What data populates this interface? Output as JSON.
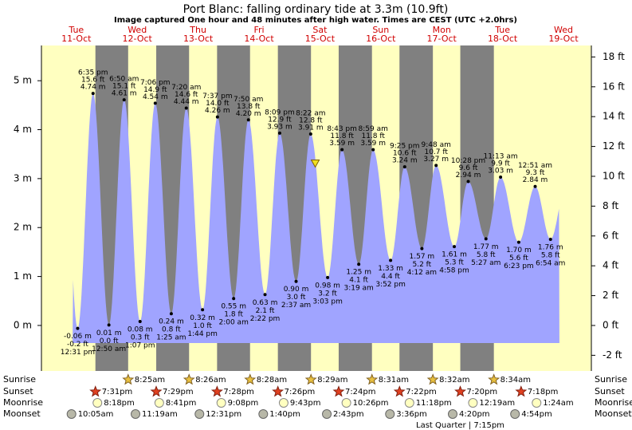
{
  "chart_data": {
    "type": "tide",
    "title": "Port Blanc: falling  ordinary tide at 3.3m (10.9ft)",
    "subtitle": "Image captured One hour and 48 minutes after high water. Times are CEST (UTC +2.0hrs)",
    "days": [
      {
        "name": "Tue",
        "date": "11-Oct"
      },
      {
        "name": "Wed",
        "date": "12-Oct"
      },
      {
        "name": "Thu",
        "date": "13-Oct"
      },
      {
        "name": "Fri",
        "date": "14-Oct"
      },
      {
        "name": "Sat",
        "date": "15-Oct"
      },
      {
        "name": "Sun",
        "date": "16-Oct"
      },
      {
        "name": "Mon",
        "date": "17-Oct"
      },
      {
        "name": "Tue",
        "date": "18-Oct"
      },
      {
        "name": "Wed",
        "date": "19-Oct"
      }
    ],
    "ylim": [
      -0.93,
      5.72
    ],
    "yticks": [
      {
        "value": 0,
        "label": "0 m"
      },
      {
        "value": 1,
        "label": "1 m"
      },
      {
        "value": 2,
        "label": "2 m"
      },
      {
        "value": 3,
        "label": "3 m"
      },
      {
        "value": 4,
        "label": "4 m"
      },
      {
        "value": 5,
        "label": "5 m"
      }
    ],
    "y2lim": [
      -3.05,
      18.77
    ],
    "y2ticks": [
      {
        "value": -2,
        "label": "-2 ft"
      },
      {
        "value": 0,
        "label": "0 ft"
      },
      {
        "value": 2,
        "label": "2 ft"
      },
      {
        "value": 4,
        "label": "4 ft"
      },
      {
        "value": 6,
        "label": "6 ft"
      },
      {
        "value": 8,
        "label": "8 ft"
      },
      {
        "value": 10,
        "label": "10 ft"
      },
      {
        "value": 12,
        "label": "12 ft"
      },
      {
        "value": 14,
        "label": "14 ft"
      },
      {
        "value": 16,
        "label": "16 ft"
      },
      {
        "value": 18,
        "label": "18 ft"
      }
    ],
    "color": "#a0a4ff",
    "day_color": "#ffffc0",
    "night_color": "#808080",
    "current_height": 3.3,
    "extremes": [
      {
        "time": "12:31 pm",
        "height": -0.06,
        "height_label": "-0.06 m",
        "feet_label": "-0.2 ft"
      },
      {
        "time": "6:35 pm",
        "height": 4.74,
        "height_label": "4.74 m",
        "feet_label": "15.6 ft"
      },
      {
        "time": "12:50 am",
        "height": 0.01,
        "height_label": "0.01 m",
        "feet_label": "0.0 ft"
      },
      {
        "time": "6:50 am",
        "height": 4.61,
        "height_label": "4.61 m",
        "feet_label": "15.1 ft"
      },
      {
        "time": "1:07 pm",
        "height": 0.08,
        "height_label": "0.08 m",
        "feet_label": "0.3 ft"
      },
      {
        "time": "7:06 pm",
        "height": 4.54,
        "height_label": "4.54 m",
        "feet_label": "14.9 ft"
      },
      {
        "time": "1:25 am",
        "height": 0.24,
        "height_label": "0.24 m",
        "feet_label": "0.8 ft"
      },
      {
        "time": "7:20 am",
        "height": 4.44,
        "height_label": "4.44 m",
        "feet_label": "14.6 ft"
      },
      {
        "time": "1:44 pm",
        "height": 0.32,
        "height_label": "0.32 m",
        "feet_label": "1.0 ft"
      },
      {
        "time": "7:37 pm",
        "height": 4.26,
        "height_label": "4.26 m",
        "feet_label": "14.0 ft"
      },
      {
        "time": "2:00 am",
        "height": 0.55,
        "height_label": "0.55 m",
        "feet_label": "1.8 ft"
      },
      {
        "time": "7:50 am",
        "height": 4.2,
        "height_label": "4.20 m",
        "feet_label": "13.8 ft"
      },
      {
        "time": "2:22 pm",
        "height": 0.63,
        "height_label": "0.63 m",
        "feet_label": "2.1 ft"
      },
      {
        "time": "8:09 pm",
        "height": 3.93,
        "height_label": "3.93 m",
        "feet_label": "12.9 ft"
      },
      {
        "time": "2:37 am",
        "height": 0.9,
        "height_label": "0.90 m",
        "feet_label": "3.0 ft"
      },
      {
        "time": "8:22 am",
        "height": 3.91,
        "height_label": "3.91 m",
        "feet_label": "12.8 ft"
      },
      {
        "time": "3:03 pm",
        "height": 0.98,
        "height_label": "0.98 m",
        "feet_label": "3.2 ft"
      },
      {
        "time": "8:43 pm",
        "height": 3.59,
        "height_label": "3.59 m",
        "feet_label": "11.8 ft"
      },
      {
        "time": "3:19 am",
        "height": 1.25,
        "height_label": "1.25 m",
        "feet_label": "4.1 ft"
      },
      {
        "time": "8:59 am",
        "height": 3.59,
        "height_label": "3.59 m",
        "feet_label": "11.8 ft"
      },
      {
        "time": "3:52 pm",
        "height": 1.33,
        "height_label": "1.33 m",
        "feet_label": "4.4 ft"
      },
      {
        "time": "9:25 pm",
        "height": 3.24,
        "height_label": "3.24 m",
        "feet_label": "10.6 ft"
      },
      {
        "time": "4:12 am",
        "height": 1.57,
        "height_label": "1.57 m",
        "feet_label": "5.2 ft"
      },
      {
        "time": "9:48 am",
        "height": 3.27,
        "height_label": "3.27 m",
        "feet_label": "10.7 ft"
      },
      {
        "time": "4:58 pm",
        "height": 1.61,
        "height_label": "1.61 m",
        "feet_label": "5.3 ft"
      },
      {
        "time": "10:28 pm",
        "height": 2.94,
        "height_label": "2.94 m",
        "feet_label": "9.6 ft"
      },
      {
        "time": "5:27 am",
        "height": 1.77,
        "height_label": "1.77 m",
        "feet_label": "5.8 ft"
      },
      {
        "time": "11:13 am",
        "height": 3.03,
        "height_label": "3.03 m",
        "feet_label": "9.9 ft"
      },
      {
        "time": "6:23 pm",
        "height": 1.7,
        "height_label": "1.70 m",
        "feet_label": "5.6 ft"
      },
      {
        "time": "12:51 am",
        "height": 2.84,
        "height_label": "2.84 m",
        "feet_label": "9.3 ft"
      },
      {
        "time": "6:54 am",
        "height": 1.76,
        "height_label": "1.76 m",
        "feet_label": "5.8 ft"
      }
    ],
    "rows": {
      "sunrise": {
        "label": "Sunrise",
        "times": [
          null,
          "8:25am",
          "8:26am",
          "8:28am",
          "8:29am",
          "8:31am",
          "8:32am",
          "8:34am",
          null
        ]
      },
      "sunset": {
        "label": "Sunset",
        "times": [
          "7:31pm",
          "7:29pm",
          "7:28pm",
          "7:26pm",
          "7:24pm",
          "7:22pm",
          "7:20pm",
          "7:18pm",
          null
        ]
      },
      "moonrise": {
        "label": "Moonrise",
        "times": [
          "8:18pm",
          "8:41pm",
          "9:08pm",
          "9:43pm",
          "10:26pm",
          "11:18pm",
          null,
          "12:19am",
          "1:24am"
        ]
      },
      "moonset": {
        "label": "Moonset",
        "times": [
          "10:05am",
          "11:19am",
          "12:31pm",
          "1:40pm",
          "2:43pm",
          "3:36pm",
          "4:20pm",
          "4:54pm",
          null
        ]
      }
    },
    "moon_phase": "Last Quarter | 7:15pm"
  }
}
